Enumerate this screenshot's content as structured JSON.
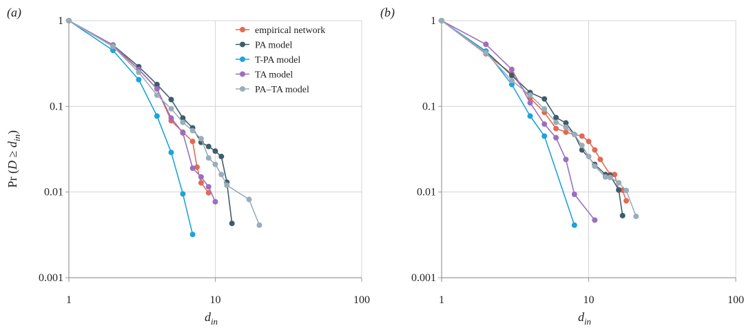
{
  "chart_data": [
    {
      "panel": "a",
      "panel_label": "(a)",
      "type": "line",
      "xscale": "log",
      "yscale": "log",
      "xlim": [
        1,
        100
      ],
      "ylim": [
        0.001,
        1
      ],
      "x_ticks": [
        "1",
        "10",
        "100"
      ],
      "y_ticks": [
        "1",
        "0.1",
        "0.01",
        "0.001"
      ],
      "grid": true,
      "legend": "top-right",
      "ylabel_parts": {
        "pre": "Pr (",
        "D": "D",
        "ge": " ≥ ",
        "d": "d",
        "sub": "in",
        "post": ")"
      },
      "xlabel_parts": {
        "d": "d",
        "sub": "in"
      },
      "series": [
        {
          "name": "empirical network",
          "color": "#e06a55",
          "points": [
            [
              1,
              1
            ],
            [
              2,
              0.5
            ],
            [
              3,
              0.27
            ],
            [
              4,
              0.16
            ],
            [
              5,
              0.068
            ],
            [
              6,
              0.05
            ],
            [
              7,
              0.039
            ],
            [
              7.5,
              0.0195
            ],
            [
              8,
              0.0128
            ],
            [
              9,
              0.0098
            ]
          ]
        },
        {
          "name": "PA model",
          "color": "#3e5c6b",
          "points": [
            [
              1,
              1
            ],
            [
              2,
              0.52
            ],
            [
              3,
              0.29
            ],
            [
              4,
              0.18
            ],
            [
              5,
              0.12
            ],
            [
              6,
              0.073
            ],
            [
              7,
              0.056
            ],
            [
              8,
              0.038
            ],
            [
              9,
              0.034
            ],
            [
              10,
              0.03
            ],
            [
              11,
              0.026
            ],
            [
              12,
              0.013
            ],
            [
              13,
              0.0043
            ]
          ]
        },
        {
          "name": "T-PA model",
          "color": "#1ea2dc",
          "points": [
            [
              1,
              1
            ],
            [
              2,
              0.45
            ],
            [
              3,
              0.205
            ],
            [
              4,
              0.077
            ],
            [
              5,
              0.029
            ],
            [
              6,
              0.0095
            ],
            [
              7,
              0.0032
            ]
          ]
        },
        {
          "name": "TA model",
          "color": "#9b6fbf",
          "points": [
            [
              1,
              1
            ],
            [
              2,
              0.52
            ],
            [
              3,
              0.27
            ],
            [
              4,
              0.16
            ],
            [
              5,
              0.073
            ],
            [
              6,
              0.049
            ],
            [
              7,
              0.019
            ],
            [
              8,
              0.015
            ],
            [
              9,
              0.0115
            ],
            [
              10,
              0.0077
            ]
          ]
        },
        {
          "name": "PA–TA model",
          "color": "#9aadb8",
          "points": [
            [
              1,
              1
            ],
            [
              2,
              0.5
            ],
            [
              3,
              0.25
            ],
            [
              4,
              0.135
            ],
            [
              5,
              0.094
            ],
            [
              6,
              0.065
            ],
            [
              7,
              0.052
            ],
            [
              8,
              0.042
            ],
            [
              9,
              0.025
            ],
            [
              10,
              0.021
            ],
            [
              11,
              0.016
            ],
            [
              12,
              0.012
            ],
            [
              17,
              0.0082
            ],
            [
              20,
              0.0041
            ]
          ]
        }
      ]
    },
    {
      "panel": "b",
      "panel_label": "(b)",
      "type": "line",
      "xscale": "log",
      "yscale": "log",
      "xlim": [
        1,
        100
      ],
      "ylim": [
        0.001,
        1
      ],
      "x_ticks": [
        "1",
        "10",
        "100"
      ],
      "y_ticks": [
        "1",
        "0.1",
        "0.01",
        "0.001"
      ],
      "grid": true,
      "xlabel_parts": {
        "d": "d",
        "sub": "in"
      },
      "series": [
        {
          "name": "empirical network",
          "color": "#e06a55",
          "points": [
            [
              1,
              1
            ],
            [
              2,
              0.41
            ],
            [
              3,
              0.24
            ],
            [
              4,
              0.125
            ],
            [
              5,
              0.085
            ],
            [
              6,
              0.055
            ],
            [
              7,
              0.05
            ],
            [
              8,
              0.047
            ],
            [
              9,
              0.045
            ],
            [
              10,
              0.039
            ],
            [
              11,
              0.031
            ],
            [
              12,
              0.024
            ],
            [
              14,
              0.016
            ],
            [
              15,
              0.016
            ],
            [
              16,
              0.0105
            ],
            [
              17,
              0.0105
            ],
            [
              18,
              0.0079
            ]
          ]
        },
        {
          "name": "PA model",
          "color": "#3e5c6b",
          "points": [
            [
              1,
              1
            ],
            [
              2,
              0.44
            ],
            [
              3,
              0.23
            ],
            [
              4,
              0.145
            ],
            [
              5,
              0.122
            ],
            [
              6,
              0.074
            ],
            [
              7,
              0.064
            ],
            [
              8,
              0.047
            ],
            [
              9,
              0.031
            ],
            [
              11,
              0.021
            ],
            [
              13,
              0.016
            ],
            [
              14,
              0.0156
            ],
            [
              16,
              0.0106
            ],
            [
              17,
              0.0053
            ]
          ]
        },
        {
          "name": "T-PA model",
          "color": "#1ea2dc",
          "points": [
            [
              1,
              1
            ],
            [
              2,
              0.44
            ],
            [
              3,
              0.18
            ],
            [
              4,
              0.077
            ],
            [
              5,
              0.045
            ],
            [
              8,
              0.0041
            ]
          ]
        },
        {
          "name": "TA model",
          "color": "#9b6fbf",
          "points": [
            [
              1,
              1
            ],
            [
              2,
              0.53
            ],
            [
              3,
              0.27
            ],
            [
              4,
              0.11
            ],
            [
              5,
              0.062
            ],
            [
              6,
              0.043
            ],
            [
              7,
              0.024
            ],
            [
              8,
              0.0094
            ],
            [
              11,
              0.0047
            ]
          ]
        },
        {
          "name": "PA–TA model",
          "color": "#9aadb8",
          "points": [
            [
              1,
              1
            ],
            [
              2,
              0.42
            ],
            [
              3,
              0.2
            ],
            [
              4,
              0.135
            ],
            [
              5,
              0.093
            ],
            [
              6,
              0.065
            ],
            [
              7,
              0.057
            ],
            [
              8,
              0.047
            ],
            [
              9,
              0.035
            ],
            [
              10,
              0.026
            ],
            [
              11,
              0.02
            ],
            [
              13,
              0.015
            ],
            [
              14,
              0.0148
            ],
            [
              16,
              0.0128
            ],
            [
              18,
              0.0104
            ],
            [
              21,
              0.0052
            ]
          ]
        }
      ]
    }
  ]
}
